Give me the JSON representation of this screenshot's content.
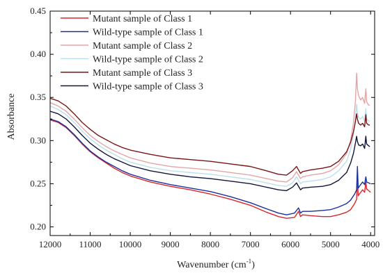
{
  "chart_data": {
    "type": "line",
    "xlabel_main": "Wavenumber (cm",
    "xlabel_sup": "-1",
    "xlabel_close": ")",
    "ylabel": "Absorbance",
    "xlim": [
      12000,
      3900
    ],
    "ylim": [
      0.19,
      0.45
    ],
    "x_reversed": true,
    "xticks": [
      {
        "value": 12000,
        "label": "12000"
      },
      {
        "value": 11000,
        "label": "11000"
      },
      {
        "value": 10000,
        "label": "10000"
      },
      {
        "value": 9000,
        "label": "9000"
      },
      {
        "value": 8000,
        "label": "8000"
      },
      {
        "value": 7000,
        "label": "7000"
      },
      {
        "value": 6000,
        "label": "6000"
      },
      {
        "value": 5000,
        "label": "5000"
      },
      {
        "value": 4000,
        "label": "4000"
      }
    ],
    "yticks": [
      {
        "value": 0.2,
        "label": "0.20"
      },
      {
        "value": 0.25,
        "label": "0.25"
      },
      {
        "value": 0.3,
        "label": "0.30"
      },
      {
        "value": 0.35,
        "label": "0.35"
      },
      {
        "value": 0.4,
        "label": "0.40"
      },
      {
        "value": 0.45,
        "label": "0.45"
      }
    ],
    "grid": false,
    "legend_position": "top-left",
    "series": [
      {
        "name": "Mutant sample of Class 1",
        "color": "#d8262b",
        "points": [
          [
            12000,
            0.324
          ],
          [
            11800,
            0.321
          ],
          [
            11600,
            0.315
          ],
          [
            11400,
            0.306
          ],
          [
            11200,
            0.296
          ],
          [
            11000,
            0.287
          ],
          [
            10800,
            0.28
          ],
          [
            10600,
            0.274
          ],
          [
            10400,
            0.268
          ],
          [
            10200,
            0.263
          ],
          [
            10000,
            0.259
          ],
          [
            9500,
            0.252
          ],
          [
            9000,
            0.247
          ],
          [
            8500,
            0.243
          ],
          [
            8000,
            0.238
          ],
          [
            7500,
            0.232
          ],
          [
            7000,
            0.225
          ],
          [
            6600,
            0.217
          ],
          [
            6300,
            0.212
          ],
          [
            6100,
            0.21
          ],
          [
            5900,
            0.211
          ],
          [
            5800,
            0.218
          ],
          [
            5750,
            0.212
          ],
          [
            5700,
            0.214
          ],
          [
            5500,
            0.213
          ],
          [
            5200,
            0.212
          ],
          [
            5000,
            0.212
          ],
          [
            4800,
            0.214
          ],
          [
            4600,
            0.217
          ],
          [
            4500,
            0.22
          ],
          [
            4400,
            0.227
          ],
          [
            4350,
            0.232
          ],
          [
            4330,
            0.258
          ],
          [
            4310,
            0.236
          ],
          [
            4250,
            0.24
          ],
          [
            4200,
            0.243
          ],
          [
            4150,
            0.24
          ],
          [
            4120,
            0.252
          ],
          [
            4100,
            0.244
          ],
          [
            4050,
            0.242
          ],
          [
            4000,
            0.24
          ]
        ]
      },
      {
        "name": "Wild-type sample of Class 1",
        "color": "#1a2f9c",
        "points": [
          [
            12000,
            0.325
          ],
          [
            11800,
            0.322
          ],
          [
            11600,
            0.316
          ],
          [
            11400,
            0.307
          ],
          [
            11200,
            0.297
          ],
          [
            11000,
            0.288
          ],
          [
            10800,
            0.281
          ],
          [
            10600,
            0.275
          ],
          [
            10400,
            0.27
          ],
          [
            10200,
            0.265
          ],
          [
            10000,
            0.261
          ],
          [
            9500,
            0.254
          ],
          [
            9000,
            0.249
          ],
          [
            8500,
            0.245
          ],
          [
            8000,
            0.241
          ],
          [
            7500,
            0.235
          ],
          [
            7000,
            0.228
          ],
          [
            6600,
            0.221
          ],
          [
            6300,
            0.216
          ],
          [
            6100,
            0.214
          ],
          [
            5900,
            0.216
          ],
          [
            5800,
            0.222
          ],
          [
            5750,
            0.216
          ],
          [
            5700,
            0.218
          ],
          [
            5500,
            0.218
          ],
          [
            5200,
            0.219
          ],
          [
            5000,
            0.22
          ],
          [
            4800,
            0.223
          ],
          [
            4600,
            0.227
          ],
          [
            4500,
            0.231
          ],
          [
            4400,
            0.238
          ],
          [
            4350,
            0.243
          ],
          [
            4330,
            0.27
          ],
          [
            4310,
            0.245
          ],
          [
            4250,
            0.249
          ],
          [
            4200,
            0.252
          ],
          [
            4150,
            0.249
          ],
          [
            4120,
            0.258
          ],
          [
            4100,
            0.252
          ],
          [
            4050,
            0.251
          ],
          [
            4000,
            0.25
          ]
        ]
      },
      {
        "name": "Mutant sample of Class 2",
        "color": "#e4a5a6",
        "points": [
          [
            12000,
            0.344
          ],
          [
            11800,
            0.34
          ],
          [
            11600,
            0.334
          ],
          [
            11400,
            0.325
          ],
          [
            11200,
            0.315
          ],
          [
            11000,
            0.306
          ],
          [
            10800,
            0.299
          ],
          [
            10600,
            0.293
          ],
          [
            10400,
            0.288
          ],
          [
            10200,
            0.284
          ],
          [
            10000,
            0.28
          ],
          [
            9500,
            0.274
          ],
          [
            9000,
            0.27
          ],
          [
            8500,
            0.268
          ],
          [
            8000,
            0.266
          ],
          [
            7500,
            0.263
          ],
          [
            7000,
            0.26
          ],
          [
            6600,
            0.256
          ],
          [
            6300,
            0.253
          ],
          [
            6100,
            0.252
          ],
          [
            5950,
            0.257
          ],
          [
            5850,
            0.264
          ],
          [
            5750,
            0.256
          ],
          [
            5700,
            0.258
          ],
          [
            5500,
            0.26
          ],
          [
            5200,
            0.262
          ],
          [
            5000,
            0.265
          ],
          [
            4800,
            0.272
          ],
          [
            4600,
            0.285
          ],
          [
            4500,
            0.3
          ],
          [
            4430,
            0.32
          ],
          [
            4380,
            0.345
          ],
          [
            4350,
            0.378
          ],
          [
            4330,
            0.36
          ],
          [
            4300,
            0.352
          ],
          [
            4250,
            0.347
          ],
          [
            4200,
            0.35
          ],
          [
            4150,
            0.343
          ],
          [
            4120,
            0.36
          ],
          [
            4100,
            0.345
          ],
          [
            4050,
            0.341
          ],
          [
            4020,
            0.341
          ]
        ]
      },
      {
        "name": "Wild-type  sample of Class 2",
        "color": "#b9e0ec",
        "points": [
          [
            12000,
            0.34
          ],
          [
            11800,
            0.336
          ],
          [
            11600,
            0.33
          ],
          [
            11400,
            0.321
          ],
          [
            11200,
            0.311
          ],
          [
            11000,
            0.302
          ],
          [
            10800,
            0.295
          ],
          [
            10600,
            0.289
          ],
          [
            10400,
            0.284
          ],
          [
            10200,
            0.279
          ],
          [
            10000,
            0.275
          ],
          [
            9500,
            0.269
          ],
          [
            9000,
            0.265
          ],
          [
            8500,
            0.263
          ],
          [
            8000,
            0.261
          ],
          [
            7500,
            0.258
          ],
          [
            7000,
            0.255
          ],
          [
            6600,
            0.251
          ],
          [
            6300,
            0.248
          ],
          [
            6100,
            0.247
          ],
          [
            5950,
            0.251
          ],
          [
            5850,
            0.258
          ],
          [
            5750,
            0.25
          ],
          [
            5700,
            0.252
          ],
          [
            5500,
            0.253
          ],
          [
            5200,
            0.255
          ],
          [
            5000,
            0.258
          ],
          [
            4800,
            0.265
          ],
          [
            4600,
            0.276
          ],
          [
            4500,
            0.29
          ],
          [
            4430,
            0.307
          ],
          [
            4380,
            0.325
          ],
          [
            4350,
            0.342
          ],
          [
            4330,
            0.332
          ],
          [
            4300,
            0.327
          ],
          [
            4250,
            0.325
          ],
          [
            4200,
            0.328
          ],
          [
            4150,
            0.322
          ],
          [
            4120,
            0.337
          ],
          [
            4100,
            0.325
          ],
          [
            4050,
            0.323
          ],
          [
            4020,
            0.322
          ]
        ]
      },
      {
        "name": "Mutant sample of Class 3",
        "color": "#7a1416",
        "points": [
          [
            12000,
            0.349
          ],
          [
            11800,
            0.346
          ],
          [
            11600,
            0.34
          ],
          [
            11400,
            0.331
          ],
          [
            11200,
            0.321
          ],
          [
            11000,
            0.313
          ],
          [
            10800,
            0.306
          ],
          [
            10600,
            0.301
          ],
          [
            10400,
            0.296
          ],
          [
            10200,
            0.292
          ],
          [
            10000,
            0.289
          ],
          [
            9500,
            0.284
          ],
          [
            9000,
            0.28
          ],
          [
            8500,
            0.278
          ],
          [
            8000,
            0.276
          ],
          [
            7500,
            0.273
          ],
          [
            7000,
            0.27
          ],
          [
            6600,
            0.265
          ],
          [
            6300,
            0.261
          ],
          [
            6100,
            0.26
          ],
          [
            5950,
            0.265
          ],
          [
            5850,
            0.27
          ],
          [
            5750,
            0.262
          ],
          [
            5700,
            0.264
          ],
          [
            5500,
            0.266
          ],
          [
            5200,
            0.268
          ],
          [
            5000,
            0.27
          ],
          [
            4800,
            0.276
          ],
          [
            4600,
            0.287
          ],
          [
            4500,
            0.298
          ],
          [
            4430,
            0.31
          ],
          [
            4380,
            0.322
          ],
          [
            4350,
            0.331
          ],
          [
            4330,
            0.325
          ],
          [
            4300,
            0.32
          ],
          [
            4250,
            0.318
          ],
          [
            4200,
            0.32
          ],
          [
            4150,
            0.316
          ],
          [
            4120,
            0.33
          ],
          [
            4100,
            0.32
          ],
          [
            4050,
            0.318
          ],
          [
            4020,
            0.318
          ]
        ]
      },
      {
        "name": "Wild-type sample of Class 3",
        "color": "#10163a",
        "points": [
          [
            12000,
            0.334
          ],
          [
            11800,
            0.331
          ],
          [
            11600,
            0.325
          ],
          [
            11400,
            0.316
          ],
          [
            11200,
            0.306
          ],
          [
            11000,
            0.297
          ],
          [
            10800,
            0.29
          ],
          [
            10600,
            0.284
          ],
          [
            10400,
            0.279
          ],
          [
            10200,
            0.275
          ],
          [
            10000,
            0.271
          ],
          [
            9500,
            0.265
          ],
          [
            9000,
            0.261
          ],
          [
            8500,
            0.258
          ],
          [
            8000,
            0.256
          ],
          [
            7500,
            0.253
          ],
          [
            7000,
            0.25
          ],
          [
            6600,
            0.246
          ],
          [
            6300,
            0.243
          ],
          [
            6100,
            0.242
          ],
          [
            5950,
            0.246
          ],
          [
            5850,
            0.251
          ],
          [
            5750,
            0.243
          ],
          [
            5700,
            0.245
          ],
          [
            5500,
            0.246
          ],
          [
            5200,
            0.247
          ],
          [
            5000,
            0.249
          ],
          [
            4800,
            0.254
          ],
          [
            4600,
            0.263
          ],
          [
            4500,
            0.274
          ],
          [
            4430,
            0.285
          ],
          [
            4380,
            0.297
          ],
          [
            4350,
            0.305
          ],
          [
            4330,
            0.299
          ],
          [
            4300,
            0.295
          ],
          [
            4250,
            0.294
          ],
          [
            4200,
            0.296
          ],
          [
            4150,
            0.291
          ],
          [
            4120,
            0.305
          ],
          [
            4100,
            0.296
          ],
          [
            4050,
            0.294
          ],
          [
            4020,
            0.293
          ]
        ]
      }
    ]
  }
}
